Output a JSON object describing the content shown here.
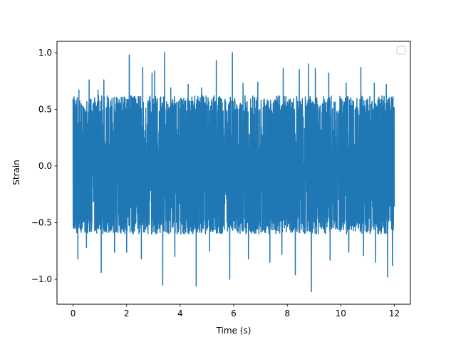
{
  "chart_data": {
    "type": "line",
    "title": "",
    "xlabel": "Time (s)",
    "ylabel": "Strain",
    "xlim": [
      -0.6,
      12.6
    ],
    "ylim": [
      -1.22,
      1.1
    ],
    "xticks": [
      0,
      2,
      4,
      6,
      8,
      10,
      12
    ],
    "xtick_labels": [
      "0",
      "2",
      "4",
      "6",
      "8",
      "10",
      "12"
    ],
    "yticks": [
      -1.0,
      -0.5,
      0.0,
      0.5,
      1.0
    ],
    "ytick_labels": [
      "−1.0",
      "−0.5",
      "0.0",
      "0.5",
      "1.0"
    ],
    "grid": false,
    "legend": {
      "placement": "upper-right",
      "entries": []
    },
    "series": [
      {
        "color": "#1f77b4",
        "x_range": [
          0,
          12
        ],
        "envelope_y_range": [
          -0.6,
          0.62
        ],
        "peaks": [
          {
            "x": 0.07,
            "y": 0.53
          },
          {
            "x": 0.22,
            "y": 0.67
          },
          {
            "x": 0.6,
            "y": 0.76
          },
          {
            "x": 0.93,
            "y": 0.67
          },
          {
            "x": 1.15,
            "y": 0.76
          },
          {
            "x": 1.55,
            "y": 0.74
          },
          {
            "x": 2.1,
            "y": 0.98
          },
          {
            "x": 2.6,
            "y": 0.87
          },
          {
            "x": 2.95,
            "y": 0.82
          },
          {
            "x": 3.05,
            "y": 0.84
          },
          {
            "x": 3.42,
            "y": 1.0
          },
          {
            "x": 3.65,
            "y": 0.69
          },
          {
            "x": 4.3,
            "y": 0.72
          },
          {
            "x": 4.8,
            "y": 0.69
          },
          {
            "x": 5.35,
            "y": 0.93
          },
          {
            "x": 5.95,
            "y": 1.0
          },
          {
            "x": 6.35,
            "y": 0.73
          },
          {
            "x": 6.9,
            "y": 0.74
          },
          {
            "x": 7.85,
            "y": 0.86
          },
          {
            "x": 8.45,
            "y": 0.85
          },
          {
            "x": 8.8,
            "y": 0.9
          },
          {
            "x": 9.05,
            "y": 0.86
          },
          {
            "x": 9.55,
            "y": 0.82
          },
          {
            "x": 10.2,
            "y": 0.73
          },
          {
            "x": 10.75,
            "y": 0.87
          },
          {
            "x": 11.25,
            "y": 0.73
          },
          {
            "x": 11.7,
            "y": 0.72
          }
        ],
        "troughs": [
          {
            "x": 0.18,
            "y": -0.82
          },
          {
            "x": 0.5,
            "y": -0.72
          },
          {
            "x": 1.05,
            "y": -0.94
          },
          {
            "x": 1.55,
            "y": -0.76
          },
          {
            "x": 2.0,
            "y": -0.76
          },
          {
            "x": 2.55,
            "y": -0.82
          },
          {
            "x": 3.35,
            "y": -1.05
          },
          {
            "x": 3.8,
            "y": -0.8
          },
          {
            "x": 4.6,
            "y": -1.06
          },
          {
            "x": 5.1,
            "y": -0.75
          },
          {
            "x": 5.85,
            "y": -1.0
          },
          {
            "x": 6.55,
            "y": -0.82
          },
          {
            "x": 7.35,
            "y": -0.85
          },
          {
            "x": 7.8,
            "y": -0.78
          },
          {
            "x": 8.3,
            "y": -0.96
          },
          {
            "x": 8.9,
            "y": -1.11
          },
          {
            "x": 9.6,
            "y": -0.83
          },
          {
            "x": 10.3,
            "y": -0.76
          },
          {
            "x": 10.85,
            "y": -0.79
          },
          {
            "x": 11.3,
            "y": -0.85
          },
          {
            "x": 11.75,
            "y": -0.98
          },
          {
            "x": 11.93,
            "y": -0.88
          }
        ]
      }
    ]
  }
}
